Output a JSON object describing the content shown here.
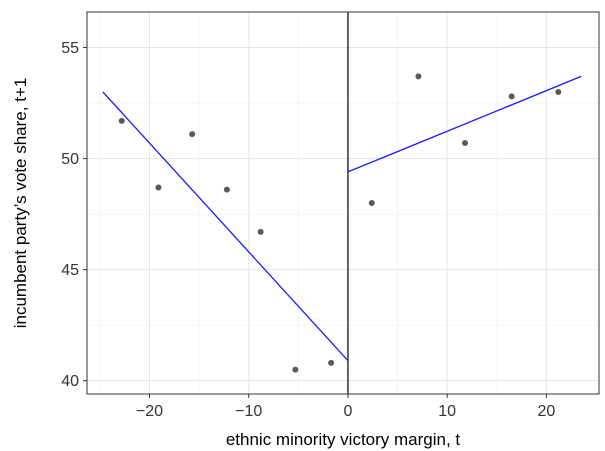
{
  "chart_data": {
    "type": "scatter",
    "title": "",
    "xlabel": "ethnic minority victory margin, t",
    "ylabel": "incumbent party’s vote share, t+1",
    "xlim": [
      -26.3,
      25.3
    ],
    "ylim": [
      39.4,
      56.6
    ],
    "xticks": [
      -20,
      -10,
      0,
      10,
      20
    ],
    "xtick_labels": [
      "−20",
      "−10",
      "0",
      "10",
      "20"
    ],
    "yticks": [
      40,
      45,
      50,
      55
    ],
    "ytick_labels": [
      "40",
      "45",
      "50",
      "55"
    ],
    "grid": true,
    "cutoff_x": 0,
    "point_color": "#595959",
    "line_color": "#1a1aff",
    "points": [
      {
        "x": -22.8,
        "y": 51.7
      },
      {
        "x": -19.1,
        "y": 48.7
      },
      {
        "x": -15.7,
        "y": 51.1
      },
      {
        "x": -12.2,
        "y": 48.6
      },
      {
        "x": -8.8,
        "y": 46.7
      },
      {
        "x": -5.3,
        "y": 40.5
      },
      {
        "x": -1.7,
        "y": 40.8
      },
      {
        "x": 2.4,
        "y": 48.0
      },
      {
        "x": 7.1,
        "y": 53.7
      },
      {
        "x": 11.8,
        "y": 50.7
      },
      {
        "x": 16.5,
        "y": 52.8
      },
      {
        "x": 21.2,
        "y": 53.0
      }
    ],
    "fit_lines": [
      {
        "x": [
          -24.7,
          0
        ],
        "y": [
          53.0,
          40.9
        ]
      },
      {
        "x": [
          0,
          23.5
        ],
        "y": [
          49.4,
          53.7
        ]
      }
    ]
  }
}
